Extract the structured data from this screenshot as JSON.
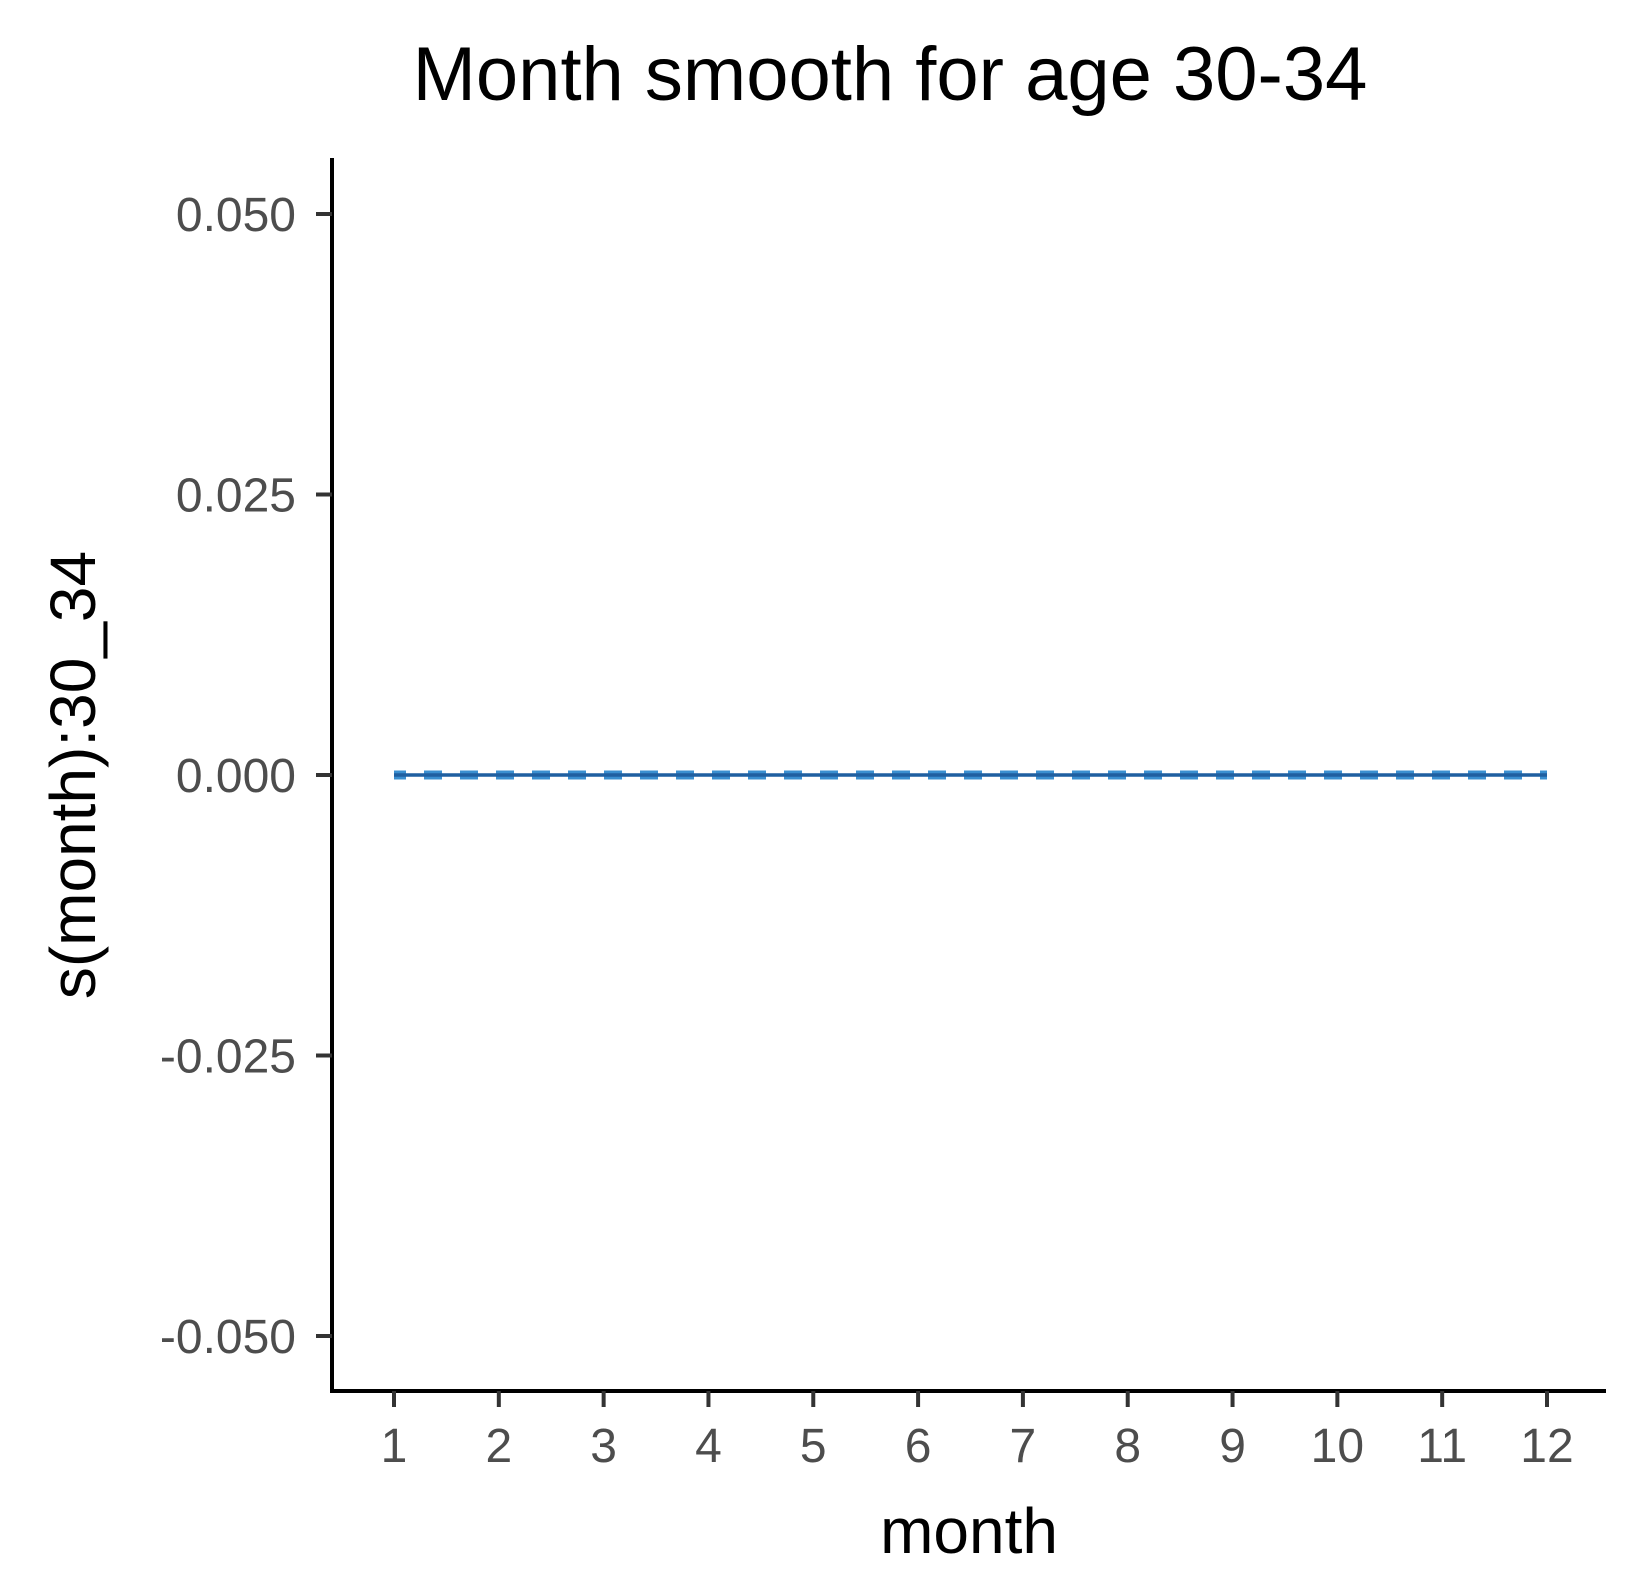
{
  "chart_data": {
    "type": "line",
    "title": "Month smooth for age 30-34",
    "xlabel": "month",
    "ylabel": "s(month):30_34",
    "x_ticks": [
      "1",
      "2",
      "3",
      "4",
      "5",
      "6",
      "7",
      "8",
      "9",
      "10",
      "11",
      "12"
    ],
    "y_ticks": [
      {
        "value": 0.05,
        "label": "0.050"
      },
      {
        "value": 0.025,
        "label": "0.025"
      },
      {
        "value": 0.0,
        "label": "0.000"
      },
      {
        "value": -0.025,
        "label": "-0.025"
      },
      {
        "value": -0.05,
        "label": "-0.050"
      }
    ],
    "xlim": [
      0.4,
      12.6
    ],
    "ylim": [
      -0.055,
      0.055
    ],
    "grid": false,
    "series": [
      {
        "role": "estimate",
        "style": "solid",
        "color": "#1f5fa0",
        "x": [
          1,
          2,
          3,
          4,
          5,
          6,
          7,
          8,
          9,
          10,
          11,
          12
        ],
        "y": [
          0,
          0,
          0,
          0,
          0,
          0,
          0,
          0,
          0,
          0,
          0,
          0
        ]
      },
      {
        "role": "upper-interval",
        "style": "dashed",
        "color": "#3a8fd0",
        "x": [
          1,
          2,
          3,
          4,
          5,
          6,
          7,
          8,
          9,
          10,
          11,
          12
        ],
        "y": [
          0,
          0,
          0,
          0,
          0,
          0,
          0,
          0,
          0,
          0,
          0,
          0
        ]
      },
      {
        "role": "lower-interval",
        "style": "dashed",
        "color": "#3a8fd0",
        "x": [
          1,
          2,
          3,
          4,
          5,
          6,
          7,
          8,
          9,
          10,
          11,
          12
        ],
        "y": [
          0,
          0,
          0,
          0,
          0,
          0,
          0,
          0,
          0,
          0,
          0,
          0
        ]
      }
    ]
  }
}
